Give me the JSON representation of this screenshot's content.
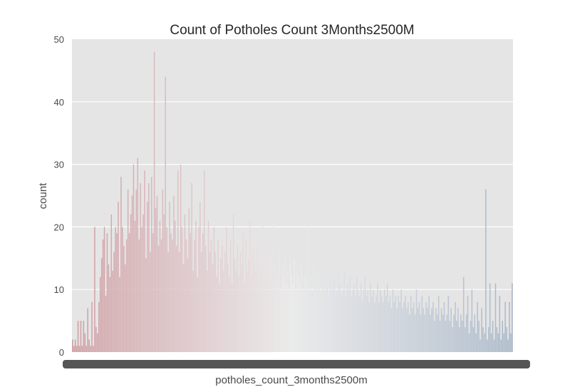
{
  "chart_data": {
    "type": "bar",
    "title": "Count of Potholes Count 3Months2500M",
    "xlabel": "potholes_count_3months2500m",
    "ylabel": "count",
    "ylim": [
      0,
      50
    ],
    "yticks": [
      "0",
      "10",
      "20",
      "30",
      "40",
      "50"
    ],
    "grid": true,
    "palette": "coolwarm",
    "colors": {
      "background": "#e5e5e5",
      "grid": "#ffffff",
      "warm_end": "#cf9ca1",
      "neutral": "#ececec",
      "cool_end": "#a9b8c9"
    },
    "categories_note": "Several hundred distinct potholes_count_3months2500m values; x tick labels overlap into an illegible band",
    "values": [
      2,
      1,
      2,
      1,
      5,
      1,
      5,
      1,
      5,
      3,
      1,
      7,
      2,
      1,
      8,
      1,
      20,
      4,
      3,
      8,
      12,
      15,
      18,
      20,
      9,
      19,
      14,
      12,
      22,
      13,
      16,
      20,
      19,
      24,
      12,
      28,
      20,
      17,
      14,
      18,
      26,
      19,
      22,
      25,
      30,
      21,
      26,
      31,
      18,
      27,
      20,
      22,
      29,
      15,
      24,
      27,
      16,
      28,
      19,
      48,
      23,
      25,
      17,
      21,
      18,
      26,
      22,
      44,
      20,
      16,
      24,
      19,
      18,
      25,
      21,
      17,
      29,
      16,
      30,
      20,
      14,
      22,
      18,
      15,
      23,
      19,
      27,
      13,
      18,
      21,
      12,
      20,
      24,
      16,
      19,
      29,
      17,
      13,
      21,
      16,
      18,
      14,
      20,
      16,
      12,
      18,
      11,
      15,
      17,
      13,
      16,
      20,
      14,
      12,
      18,
      11,
      22,
      15,
      13,
      17,
      12,
      16,
      14,
      19,
      11,
      18,
      13,
      15,
      21,
      12,
      16,
      14,
      13,
      17,
      11,
      15,
      13,
      22,
      12,
      14,
      16,
      11,
      13,
      15,
      26,
      12,
      14,
      11,
      13,
      16,
      10,
      14,
      12,
      15,
      11,
      13,
      10,
      14,
      12,
      11,
      15,
      10,
      13,
      12,
      11,
      14,
      10,
      12,
      13,
      11,
      20,
      10,
      12,
      9,
      14,
      11,
      13,
      10,
      12,
      9,
      11,
      13,
      10,
      12,
      11,
      9,
      13,
      10,
      11,
      12,
      9,
      10,
      12,
      11,
      9,
      10,
      13,
      9,
      11,
      10,
      12,
      9,
      10,
      11,
      9,
      12,
      10,
      9,
      11,
      8,
      10,
      12,
      9,
      10,
      8,
      11,
      9,
      10,
      8,
      9,
      11,
      8,
      10,
      9,
      8,
      10,
      9,
      11,
      8,
      9,
      7,
      10,
      8,
      9,
      7,
      9,
      8,
      10,
      7,
      8,
      9,
      7,
      8,
      6,
      9,
      7,
      8,
      6,
      10,
      7,
      8,
      6,
      9,
      7,
      6,
      8,
      7,
      9,
      6,
      7,
      8,
      5,
      7,
      6,
      9,
      5,
      7,
      6,
      8,
      5,
      6,
      9,
      5,
      7,
      4,
      6,
      8,
      5,
      7,
      4,
      6,
      5,
      12,
      4,
      6,
      9,
      3,
      5,
      10,
      4,
      6,
      3,
      8,
      5,
      2,
      7,
      4,
      3,
      26,
      2,
      4,
      11,
      3,
      5,
      2,
      11,
      4,
      3,
      9,
      2,
      5,
      3,
      8,
      4,
      2,
      8,
      3,
      11
    ]
  }
}
